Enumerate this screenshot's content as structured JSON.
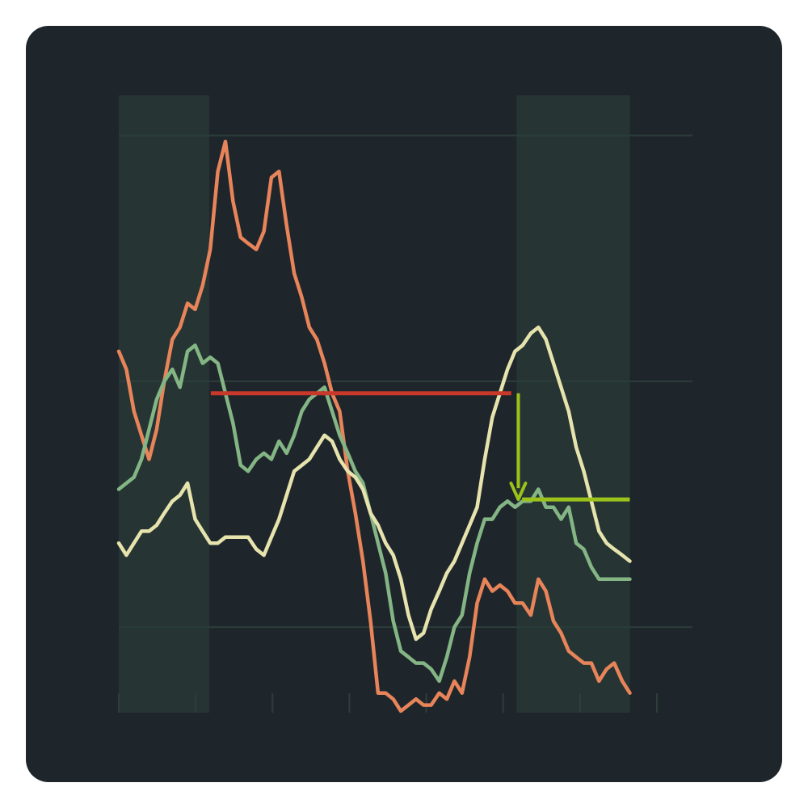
{
  "colors": {
    "card_background": "#1f262b",
    "band_fill": "#263533",
    "gridline": "#2b3d3a",
    "tick": "#2f3d3b",
    "threshold_before": "#c8382b",
    "threshold_after": "#9cc21c",
    "drop_arrow": "#9cc21c"
  },
  "chart_data": {
    "type": "line",
    "title": "",
    "xlabel": "",
    "ylabel": "",
    "x_range": [
      0,
      100
    ],
    "y_range": [
      0,
      100
    ],
    "grid": true,
    "gridlines_y": [
      14,
      55,
      96
    ],
    "xticks": [
      0,
      14.2,
      28.4,
      42.6,
      56.8,
      71,
      85.2,
      99.4
    ],
    "shaded_bands": [
      [
        0,
        16.7
      ],
      [
        73.5,
        94.4
      ]
    ],
    "legend": "none",
    "series": [
      {
        "color": "#e8845a",
        "x": [
          0,
          1.4,
          2.8,
          4.2,
          5.6,
          7,
          8.4,
          9.9,
          11.3,
          12.7,
          14.1,
          15.5,
          16.9,
          18.3,
          19.7,
          21.1,
          22.5,
          23.9,
          25.4,
          26.8,
          28.2,
          29.6,
          31,
          32.4,
          33.8,
          35.2,
          36.6,
          38,
          39.4,
          40.8,
          42.3,
          43.7,
          45.1,
          46.5,
          47.9,
          49.3,
          50.7,
          52.1,
          53.5,
          54.9,
          56.3,
          57.7,
          59.2,
          60.6,
          62,
          63.4,
          64.8,
          66.2,
          67.6,
          69,
          70.4,
          71.8,
          73.2,
          74.6,
          76.1,
          77.5,
          78.9,
          80.3,
          81.7,
          83.1,
          84.5,
          85.9,
          87.3,
          88.7,
          90.1,
          91.5,
          93,
          94.4
        ],
        "y": [
          60,
          57,
          50,
          46,
          42,
          47,
          55,
          62,
          64,
          68,
          67,
          71,
          77,
          90,
          95,
          85,
          79,
          78,
          77,
          80,
          89,
          90,
          81,
          73,
          69,
          64,
          62,
          58,
          53,
          50,
          40,
          33,
          25,
          15,
          3,
          3,
          2,
          0,
          1,
          2,
          1,
          1,
          3,
          2,
          5,
          3,
          9,
          18,
          22,
          20,
          21,
          20,
          18,
          18,
          16,
          22,
          20,
          15,
          13,
          10,
          9,
          8,
          8,
          5,
          7,
          8,
          5,
          3
        ]
      },
      {
        "color": "#84b585",
        "x": [
          0,
          1.4,
          2.8,
          4.2,
          5.6,
          7,
          8.4,
          9.9,
          11.3,
          12.7,
          14.1,
          15.5,
          16.9,
          18.3,
          19.7,
          21.1,
          22.5,
          23.9,
          25.4,
          26.8,
          28.2,
          29.6,
          31,
          32.4,
          33.8,
          35.2,
          36.6,
          38,
          39.4,
          40.8,
          42.3,
          43.7,
          45.1,
          46.5,
          47.9,
          49.3,
          50.7,
          52.1,
          53.5,
          54.9,
          56.3,
          57.7,
          59.2,
          60.6,
          62,
          63.4,
          64.8,
          66.2,
          67.6,
          69,
          70.4,
          71.8,
          73.2,
          74.6,
          76.1,
          77.5,
          78.9,
          80.3,
          81.7,
          83.1,
          84.5,
          85.9,
          87.3,
          88.7,
          90.1,
          91.5,
          93,
          94.4
        ],
        "y": [
          37,
          38,
          39,
          42,
          47,
          52,
          55,
          57,
          54,
          60,
          61,
          58,
          59,
          58,
          53,
          48,
          41,
          40,
          42,
          43,
          42,
          45,
          43,
          46,
          50,
          52,
          53,
          54,
          50,
          46,
          43,
          40,
          38,
          33,
          28,
          23,
          15,
          10,
          9,
          8,
          8,
          7,
          5,
          9,
          14,
          16,
          23,
          28,
          32,
          32,
          34,
          35,
          34,
          35,
          35,
          37,
          34,
          34,
          32,
          34,
          28,
          27,
          24,
          22,
          22,
          22,
          22,
          22
        ]
      },
      {
        "color": "#e6e3ad",
        "x": [
          0,
          1.4,
          2.8,
          4.2,
          5.6,
          7,
          8.4,
          9.9,
          11.3,
          12.7,
          14.1,
          15.5,
          16.9,
          18.3,
          19.7,
          21.1,
          22.5,
          23.9,
          25.4,
          26.8,
          28.2,
          29.6,
          31,
          32.4,
          33.8,
          35.2,
          36.6,
          38,
          39.4,
          40.8,
          42.3,
          43.7,
          45.1,
          46.5,
          47.9,
          49.3,
          50.7,
          52.1,
          53.5,
          54.9,
          56.3,
          57.7,
          59.2,
          60.6,
          62,
          63.4,
          64.8,
          66.2,
          67.6,
          69,
          70.4,
          71.8,
          73.2,
          74.6,
          76.1,
          77.5,
          78.9,
          80.3,
          81.7,
          83.1,
          84.5,
          85.9,
          87.3,
          88.7,
          90.1,
          91.5,
          93,
          94.4
        ],
        "y": [
          28,
          26,
          28,
          30,
          30,
          31,
          33,
          35,
          36,
          38,
          32,
          30,
          28,
          28,
          29,
          29,
          29,
          29,
          27,
          26,
          29,
          32,
          36,
          40,
          41,
          42,
          44,
          46,
          45,
          42,
          40,
          39,
          37,
          33,
          31,
          28,
          26,
          22,
          16,
          12,
          13,
          17,
          20,
          23,
          25,
          28,
          31,
          34,
          42,
          49,
          53,
          57,
          60,
          61,
          63,
          64,
          62,
          58,
          54,
          50,
          44,
          40,
          35,
          30,
          28,
          27,
          26,
          25
        ]
      }
    ],
    "threshold_before": {
      "x": [
        17,
        72.5
      ],
      "y": 53
    },
    "threshold_after": {
      "x": [
        74.5,
        94.4
      ],
      "y": 35.3
    },
    "drop_arrow": {
      "x": 73.8,
      "from_y": 53,
      "to_y": 35.3
    }
  }
}
